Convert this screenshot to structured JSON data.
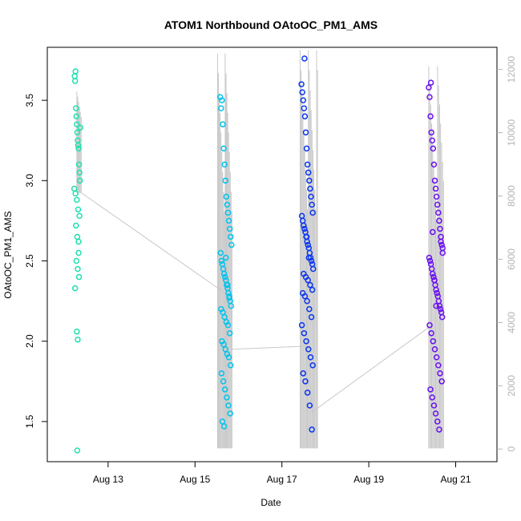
{
  "chart_data": {
    "type": "scatter",
    "title": "ATOM1 Northbound OAtoOC_PM1_AMS",
    "xlabel": "Date",
    "ylabel": "OAtoOC_PM1_AMS",
    "x_unit": "days",
    "xlim": [
      11.6,
      21.95
    ],
    "ylim": [
      1.25,
      3.83
    ],
    "y2lim": [
      -400,
      12700
    ],
    "grid": false,
    "legend": "none",
    "x_ticks": [
      {
        "value": 13,
        "label": "Aug 13"
      },
      {
        "value": 15,
        "label": "Aug 15"
      },
      {
        "value": 17,
        "label": "Aug 17"
      },
      {
        "value": 19,
        "label": "Aug 19"
      },
      {
        "value": 21,
        "label": "Aug 21"
      }
    ],
    "y_ticks": [
      {
        "value": 1.5,
        "label": "1.5"
      },
      {
        "value": 2.0,
        "label": "2.0"
      },
      {
        "value": 2.5,
        "label": "2.5"
      },
      {
        "value": 3.0,
        "label": "3.0"
      },
      {
        "value": 3.5,
        "label": "3.5"
      }
    ],
    "y2_ticks": [
      {
        "value": 0,
        "label": "0"
      },
      {
        "value": 2000,
        "label": "2000"
      },
      {
        "value": 4000,
        "label": "4000"
      },
      {
        "value": 6000,
        "label": "6000"
      },
      {
        "value": 8000,
        "label": "8000"
      },
      {
        "value": 10000,
        "label": "10000"
      },
      {
        "value": 12000,
        "label": "12000"
      }
    ],
    "track_line": {
      "color": "#c8c8c8",
      "x": [
        12.35,
        15.85,
        15.85,
        17.6,
        17.7,
        20.4
      ],
      "y": [
        2.93,
        2.27,
        1.95,
        1.97,
        1.56,
        2.09
      ]
    },
    "altitude_series": [
      {
        "x_start": 12.28,
        "x_end": 12.38,
        "y2_low": 8100,
        "y2_high": 11300,
        "count": 6
      },
      {
        "x_start": 15.52,
        "x_end": 15.85,
        "y2_low": 20,
        "y2_high": 12500,
        "count": 18
      },
      {
        "x_start": 17.42,
        "x_end": 17.82,
        "y2_low": 20,
        "y2_high": 12600,
        "count": 20
      },
      {
        "x_start": 20.38,
        "x_end": 20.72,
        "y2_low": 20,
        "y2_high": 12100,
        "count": 16
      }
    ],
    "series": [
      {
        "color": "#1fe0b0",
        "x": [
          12.23,
          12.24,
          12.25,
          12.26,
          12.27,
          12.28,
          12.29,
          12.3,
          12.31,
          12.32,
          12.33,
          12.34,
          12.35,
          12.22,
          12.25,
          12.28,
          12.31,
          12.34,
          12.26,
          12.29,
          12.32,
          12.27,
          12.3,
          12.33,
          12.24,
          12.28,
          12.3,
          12.36,
          12.32,
          12.29
        ],
        "y": [
          3.65,
          3.62,
          3.68,
          3.45,
          3.4,
          3.35,
          3.3,
          3.25,
          3.22,
          3.2,
          3.1,
          3.05,
          3.0,
          2.95,
          2.92,
          2.88,
          2.82,
          2.78,
          2.72,
          2.65,
          2.55,
          2.5,
          2.45,
          2.4,
          2.33,
          2.06,
          2.01,
          3.33,
          2.62,
          1.32
        ]
      },
      {
        "color": "#00c3ee",
        "x": [
          15.58,
          15.6,
          15.62,
          15.64,
          15.66,
          15.68,
          15.7,
          15.72,
          15.74,
          15.76,
          15.78,
          15.8,
          15.82,
          15.84,
          15.59,
          15.61,
          15.63,
          15.65,
          15.67,
          15.69,
          15.71,
          15.73,
          15.75,
          15.77,
          15.79,
          15.81,
          15.83,
          15.6,
          15.64,
          15.68,
          15.72,
          15.76,
          15.8,
          15.62,
          15.66,
          15.7,
          15.74,
          15.78,
          15.82,
          15.61,
          15.65,
          15.69,
          15.73,
          15.77,
          15.81,
          15.63,
          15.67,
          15.71,
          15.75,
          15.79
        ],
        "y": [
          3.52,
          3.45,
          3.5,
          3.35,
          3.2,
          3.1,
          3.0,
          2.9,
          2.85,
          2.8,
          2.75,
          2.7,
          2.65,
          2.6,
          2.55,
          2.5,
          2.48,
          2.45,
          2.42,
          2.4,
          2.38,
          2.35,
          2.33,
          2.3,
          2.28,
          2.25,
          2.22,
          2.2,
          2.18,
          2.15,
          2.12,
          2.1,
          2.05,
          2.0,
          1.98,
          1.95,
          1.92,
          1.9,
          1.85,
          1.8,
          1.75,
          1.7,
          1.65,
          1.6,
          1.55,
          1.5,
          1.47,
          2.52,
          2.35,
          2.27
        ]
      },
      {
        "color": "#0a36f0",
        "x": [
          17.45,
          17.47,
          17.49,
          17.51,
          17.53,
          17.55,
          17.57,
          17.59,
          17.61,
          17.63,
          17.65,
          17.67,
          17.69,
          17.71,
          17.46,
          17.48,
          17.5,
          17.52,
          17.54,
          17.56,
          17.58,
          17.6,
          17.62,
          17.64,
          17.66,
          17.68,
          17.7,
          17.72,
          17.5,
          17.55,
          17.6,
          17.65,
          17.7,
          17.48,
          17.53,
          17.58,
          17.63,
          17.68,
          17.46,
          17.51,
          17.56,
          17.61,
          17.66,
          17.71,
          17.49,
          17.54,
          17.59,
          17.64,
          17.69,
          17.52,
          17.57,
          17.62
        ],
        "y": [
          3.6,
          3.55,
          3.5,
          3.45,
          3.4,
          3.3,
          3.2,
          3.1,
          3.05,
          3.0,
          2.95,
          2.9,
          2.85,
          2.8,
          2.78,
          2.75,
          2.72,
          2.7,
          2.68,
          2.65,
          2.62,
          2.6,
          2.58,
          2.55,
          2.52,
          2.5,
          2.48,
          2.45,
          2.42,
          2.4,
          2.38,
          2.35,
          2.32,
          2.3,
          2.28,
          2.25,
          2.2,
          2.15,
          2.1,
          2.05,
          2.0,
          1.95,
          1.9,
          1.85,
          1.8,
          1.75,
          1.68,
          1.6,
          1.45,
          3.76,
          2.65,
          2.52
        ]
      },
      {
        "color": "#6a10f0",
        "x": [
          20.38,
          20.4,
          20.42,
          20.44,
          20.46,
          20.48,
          20.5,
          20.52,
          20.54,
          20.56,
          20.58,
          20.6,
          20.62,
          20.64,
          20.66,
          20.68,
          20.7,
          20.39,
          20.41,
          20.43,
          20.45,
          20.47,
          20.49,
          20.51,
          20.53,
          20.55,
          20.57,
          20.59,
          20.61,
          20.63,
          20.65,
          20.67,
          20.69,
          20.4,
          20.44,
          20.48,
          20.52,
          20.56,
          20.6,
          20.64,
          20.68,
          20.42,
          20.46,
          20.5,
          20.54,
          20.58,
          20.62,
          20.66,
          20.7,
          20.43,
          20.47,
          20.51,
          20.55
        ],
        "y": [
          3.58,
          3.52,
          3.4,
          3.3,
          3.25,
          3.2,
          3.1,
          3.0,
          2.95,
          2.9,
          2.85,
          2.8,
          2.75,
          2.7,
          2.65,
          2.6,
          2.55,
          2.52,
          2.5,
          2.48,
          2.45,
          2.42,
          2.4,
          2.38,
          2.35,
          2.32,
          2.3,
          2.28,
          2.25,
          2.22,
          2.2,
          2.18,
          2.15,
          2.1,
          2.05,
          2.0,
          1.95,
          1.9,
          1.85,
          1.8,
          1.75,
          1.7,
          1.65,
          1.6,
          1.55,
          1.5,
          1.45,
          2.62,
          2.58,
          3.61,
          2.68,
          2.38,
          2.22
        ]
      }
    ]
  }
}
